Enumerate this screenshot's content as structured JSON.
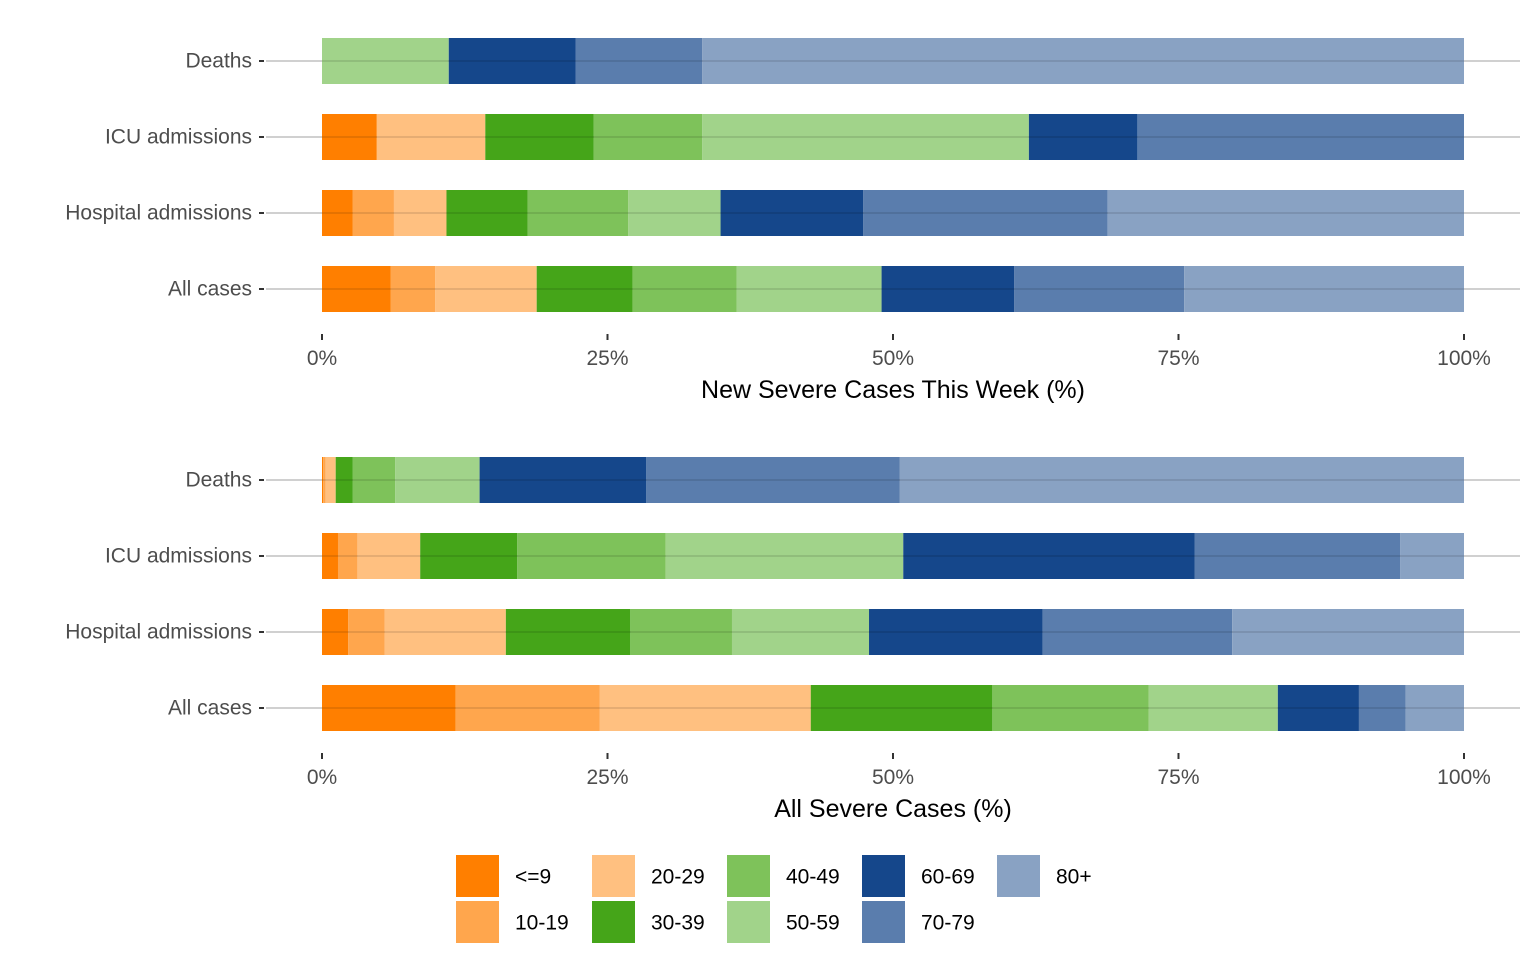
{
  "chart_data": [
    {
      "type": "bar",
      "orientation": "horizontal",
      "stacked": true,
      "xlabel": "New Severe Cases This Week (%)",
      "ylabel": "",
      "xlim": [
        0,
        100
      ],
      "x_ticks": [
        "0%",
        "25%",
        "50%",
        "75%",
        "100%"
      ],
      "x_tick_values": [
        0,
        25,
        50,
        75,
        100
      ],
      "categories": [
        "Deaths",
        "ICU admissions",
        "Hospital admissions",
        "All cases"
      ],
      "grid": "horizontal",
      "series": [
        {
          "name": "<=9",
          "values": [
            0,
            4.8,
            2.7,
            6.0
          ]
        },
        {
          "name": "10-19",
          "values": [
            0,
            0,
            3.6,
            3.9
          ]
        },
        {
          "name": "20-29",
          "values": [
            0,
            9.5,
            4.6,
            8.9
          ]
        },
        {
          "name": "30-39",
          "values": [
            0,
            9.5,
            7.1,
            8.4
          ]
        },
        {
          "name": "40-49",
          "values": [
            0,
            9.5,
            8.8,
            9.1
          ]
        },
        {
          "name": "50-59",
          "values": [
            11.1,
            28.6,
            8.1,
            12.7
          ]
        },
        {
          "name": "60-69",
          "values": [
            11.1,
            9.5,
            12.5,
            11.6
          ]
        },
        {
          "name": "70-79",
          "values": [
            11.1,
            28.6,
            21.4,
            14.9
          ]
        },
        {
          "name": "80+",
          "values": [
            66.7,
            0,
            31.2,
            24.5
          ]
        }
      ]
    },
    {
      "type": "bar",
      "orientation": "horizontal",
      "stacked": true,
      "xlabel": "All Severe Cases (%)",
      "ylabel": "",
      "xlim": [
        0,
        100
      ],
      "x_ticks": [
        "0%",
        "25%",
        "50%",
        "75%",
        "100%"
      ],
      "x_tick_values": [
        0,
        25,
        50,
        75,
        100
      ],
      "categories": [
        "Deaths",
        "ICU admissions",
        "Hospital admissions",
        "All cases"
      ],
      "grid": "horizontal",
      "series": [
        {
          "name": "<=9",
          "values": [
            0.1,
            1.4,
            2.3,
            11.7
          ]
        },
        {
          "name": "10-19",
          "values": [
            0.2,
            1.7,
            3.2,
            12.6
          ]
        },
        {
          "name": "20-29",
          "values": [
            0.9,
            5.5,
            10.6,
            18.5
          ]
        },
        {
          "name": "30-39",
          "values": [
            1.5,
            8.5,
            10.9,
            15.9
          ]
        },
        {
          "name": "40-49",
          "values": [
            3.7,
            13.0,
            8.9,
            13.7
          ]
        },
        {
          "name": "50-59",
          "values": [
            7.4,
            20.8,
            12.0,
            11.3
          ]
        },
        {
          "name": "60-69",
          "values": [
            14.6,
            25.5,
            15.2,
            7.1
          ]
        },
        {
          "name": "70-79",
          "values": [
            22.2,
            18.0,
            16.6,
            4.1
          ]
        },
        {
          "name": "80+",
          "values": [
            49.4,
            5.6,
            20.3,
            5.1
          ]
        }
      ]
    }
  ],
  "legend": {
    "position": "bottom",
    "items": [
      {
        "label": "<=9",
        "color": "#FF7F00"
      },
      {
        "label": "10-19",
        "color": "#FFA64D"
      },
      {
        "label": "20-29",
        "color": "#FFC080"
      },
      {
        "label": "30-39",
        "color": "#45A519"
      },
      {
        "label": "40-49",
        "color": "#7EC25A"
      },
      {
        "label": "50-59",
        "color": "#A1D38A"
      },
      {
        "label": "60-69",
        "color": "#15478B"
      },
      {
        "label": "70-79",
        "color": "#5A7DAD"
      },
      {
        "label": "80+",
        "color": "#89A2C3"
      }
    ]
  }
}
